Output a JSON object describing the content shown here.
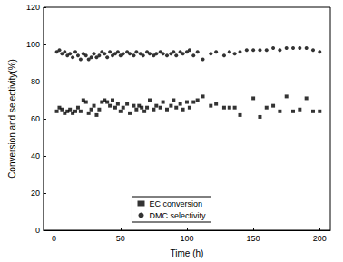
{
  "chart_data": {
    "type": "scatter",
    "x_label": "Time (h)",
    "y_label": "Conversion and selectivity(%)",
    "xlim": [
      -8,
      208
    ],
    "xticks": [
      0,
      50,
      100,
      150,
      200
    ],
    "ylim": [
      0,
      120
    ],
    "yticks": [
      0,
      20,
      40,
      60,
      80,
      100,
      120
    ],
    "grid": false,
    "legend": "bottom",
    "series": [
      {
        "name": "EC conversion",
        "color": "#000000",
        "marker": "square",
        "x": [
          2,
          4,
          6,
          8,
          10,
          12,
          14,
          16,
          18,
          20,
          22,
          24,
          26,
          28,
          30,
          32,
          34,
          36,
          38,
          40,
          42,
          44,
          46,
          48,
          50,
          52,
          55,
          57,
          60,
          62,
          64,
          66,
          68,
          70,
          72,
          75,
          77,
          80,
          82,
          85,
          88,
          90,
          92,
          95,
          97,
          100,
          102,
          105,
          108,
          112,
          118,
          122,
          128,
          132,
          136,
          140,
          150,
          155,
          160,
          165,
          170,
          175,
          180,
          185,
          190,
          195,
          200
        ],
        "values": [
          64,
          66,
          65,
          63,
          64,
          65,
          63,
          64,
          66,
          64,
          70,
          69,
          63,
          65,
          67,
          62,
          65,
          69,
          70,
          69,
          67,
          70,
          66,
          68,
          64,
          66,
          68,
          63,
          67,
          65,
          67,
          66,
          64,
          66,
          70,
          65,
          67,
          66,
          69,
          65,
          67,
          70,
          66,
          68,
          65,
          69,
          66,
          69,
          70,
          72,
          67,
          68,
          66,
          66,
          66,
          62,
          71,
          61,
          66,
          67,
          64,
          72,
          64,
          65,
          71,
          64,
          64
        ]
      },
      {
        "name": "DMC selectivity",
        "color": "#000000",
        "marker": "circle",
        "x": [
          2,
          4,
          6,
          8,
          10,
          12,
          14,
          16,
          18,
          20,
          22,
          24,
          26,
          28,
          30,
          32,
          34,
          36,
          38,
          40,
          42,
          44,
          46,
          48,
          50,
          52,
          55,
          57,
          60,
          62,
          65,
          67,
          70,
          72,
          75,
          77,
          80,
          82,
          85,
          88,
          90,
          92,
          95,
          97,
          100,
          102,
          105,
          108,
          112,
          118,
          122,
          128,
          132,
          136,
          140,
          145,
          150,
          155,
          160,
          165,
          170,
          175,
          180,
          185,
          190,
          195,
          200
        ],
        "values": [
          96,
          97,
          95,
          96,
          94,
          95,
          93,
          96,
          94,
          92,
          95,
          94,
          92,
          93,
          95,
          93,
          94,
          96,
          95,
          93,
          96,
          94,
          95,
          96,
          94,
          95,
          96,
          95,
          94,
          96,
          95,
          94,
          96,
          95,
          94,
          95,
          96,
          95,
          94,
          95,
          96,
          94,
          96,
          95,
          96,
          97,
          94,
          96,
          92,
          95,
          96,
          94,
          96,
          95,
          96,
          97,
          97,
          97,
          97,
          98,
          97,
          98,
          98,
          98,
          98,
          97,
          96
        ]
      }
    ]
  }
}
